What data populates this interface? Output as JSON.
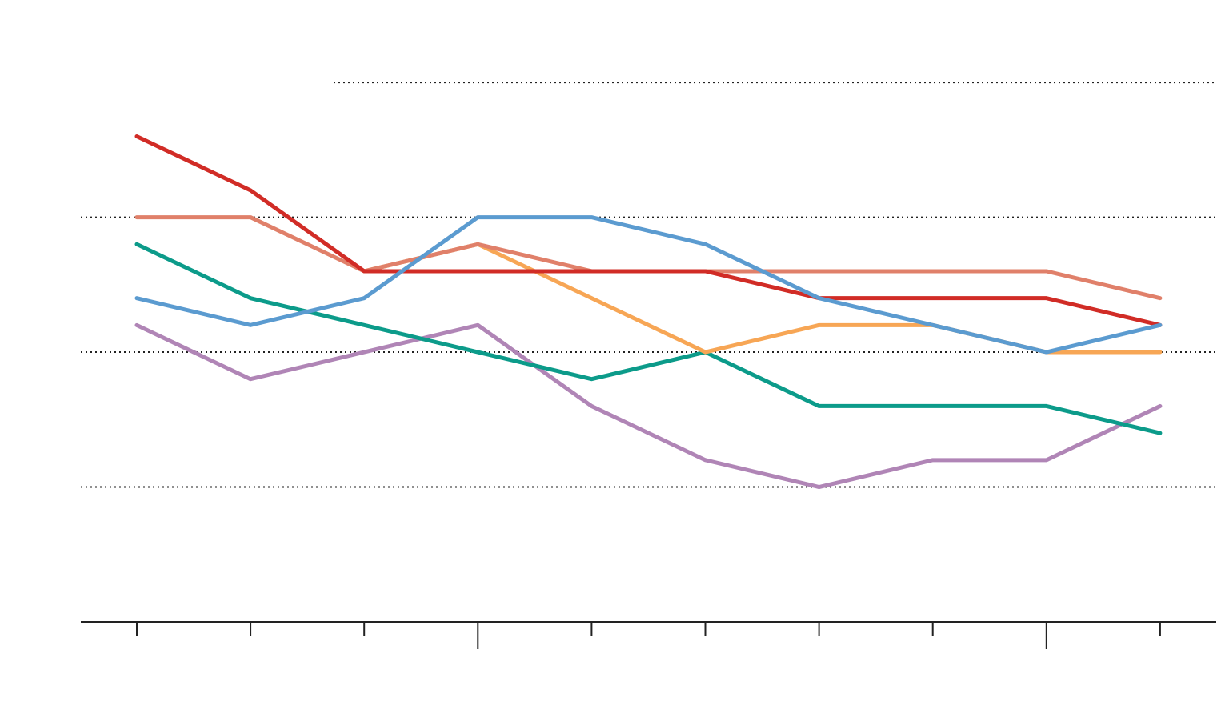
{
  "chart_data": {
    "type": "line",
    "categories": [
      null,
      null,
      null,
      null,
      null,
      null,
      null,
      null,
      null,
      null
    ],
    "series": [
      {
        "color": "#b085b6",
        "values": [
          11,
          9,
          10,
          11,
          8,
          6,
          5,
          6,
          6,
          8
        ]
      },
      {
        "color": "#0c9b8a",
        "values": [
          14,
          12,
          11,
          10,
          9,
          10,
          8,
          8,
          8,
          7
        ]
      },
      {
        "color": "#f7a655",
        "values": [
          null,
          null,
          13,
          14,
          12,
          10,
          11,
          11,
          10,
          10
        ]
      },
      {
        "color": "#e0806a",
        "values": [
          15,
          15,
          13,
          14,
          13,
          13,
          13,
          13,
          13,
          12
        ]
      },
      {
        "color": "#d12c26",
        "values": [
          18,
          16,
          13,
          13,
          13,
          13,
          12,
          12,
          12,
          11
        ]
      },
      {
        "color": "#5b9bd0",
        "values": [
          12,
          11,
          12,
          15,
          15,
          14,
          12,
          11,
          10,
          11
        ]
      }
    ],
    "ylim": [
      0,
      23
    ],
    "yticks": [
      0,
      5,
      10,
      15,
      20
    ],
    "grid": true
  }
}
